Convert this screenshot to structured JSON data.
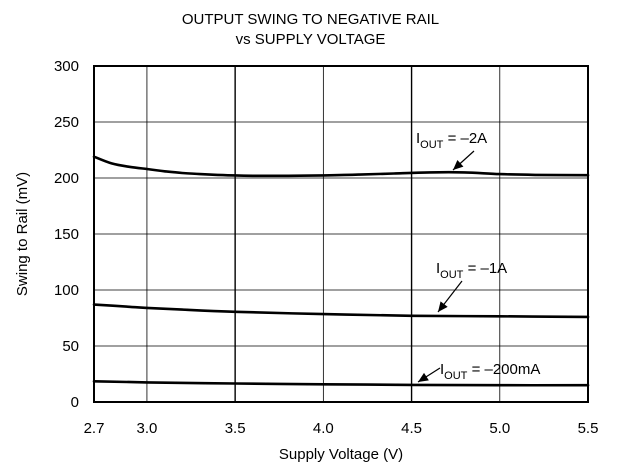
{
  "chart_data": {
    "type": "line",
    "title_line1": "OUTPUT SWING TO NEGATIVE RAIL",
    "title_line2": "vs SUPPLY VOLTAGE",
    "xlabel": "Supply Voltage (V)",
    "ylabel": "Swing to Rail (mV)",
    "xlim": [
      2.7,
      5.5
    ],
    "ylim": [
      0,
      300
    ],
    "x_ticks": [
      "2.7",
      "3.0",
      "3.5",
      "4.0",
      "4.5",
      "5.0",
      "5.5"
    ],
    "y_ticks": [
      "0",
      "50",
      "100",
      "150",
      "200",
      "250",
      "300"
    ],
    "grid": true,
    "series": [
      {
        "name": "IOUT = –2A",
        "x": [
          2.7,
          2.8,
          2.9,
          3.0,
          3.1,
          3.2,
          3.3,
          3.4,
          3.5,
          3.6,
          3.8,
          4.0,
          4.2,
          4.4,
          4.6,
          4.8,
          5.0,
          5.2,
          5.5
        ],
        "y": [
          219,
          213,
          210,
          208,
          206,
          204.5,
          203.5,
          202.8,
          202.3,
          202,
          202,
          202.3,
          203,
          204,
          205,
          205,
          203.5,
          202.8,
          202.5
        ]
      },
      {
        "name": "IOUT = –1A",
        "x": [
          2.7,
          2.9,
          3.0,
          3.2,
          3.5,
          4.0,
          4.5,
          5.0,
          5.5
        ],
        "y": [
          87,
          85,
          84,
          82.5,
          80.5,
          78.5,
          77,
          76.5,
          76
        ]
      },
      {
        "name": "IOUT = –200mA",
        "x": [
          2.7,
          3.0,
          3.5,
          4.0,
          4.5,
          5.0,
          5.5
        ],
        "y": [
          18.5,
          17.5,
          16.5,
          15.8,
          15.3,
          15,
          15
        ]
      }
    ],
    "annotations": [
      {
        "base": "I",
        "sub": "OUT",
        "rest": " = –2A"
      },
      {
        "base": "I",
        "sub": "OUT",
        "rest": " = –1A"
      },
      {
        "base": "I",
        "sub": "OUT",
        "rest": " = –200mA"
      }
    ]
  }
}
